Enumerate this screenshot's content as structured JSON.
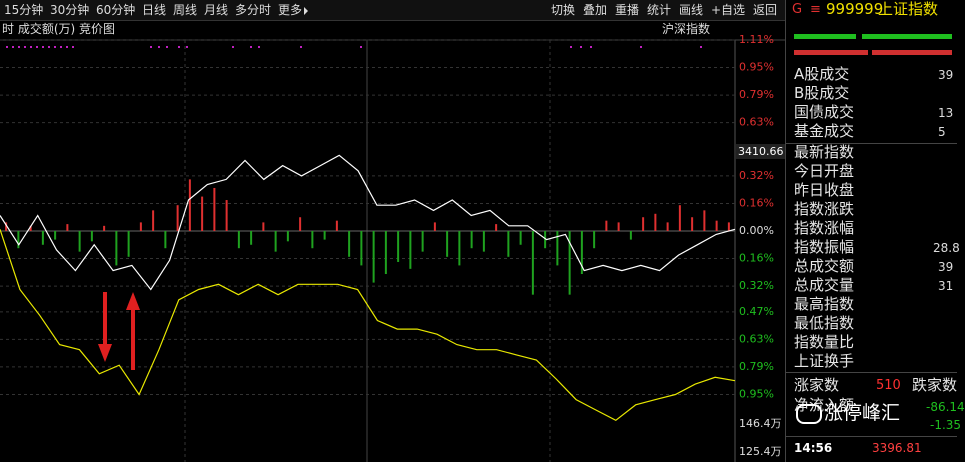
{
  "toolbar": {
    "periods": [
      "15分钟",
      "30分钟",
      "60分钟",
      "日线",
      "周线",
      "月线",
      "多分时",
      "更多"
    ],
    "actions": [
      "切换",
      "叠加",
      "重播",
      "统计",
      "画线",
      "+自选",
      "返回"
    ]
  },
  "chart_header": {
    "left": "时 成交额(万) 竞价图",
    "right": "沪深指数"
  },
  "chart_data": {
    "type": "line",
    "ylim": [
      -1.11,
      1.11
    ],
    "yticks": [
      {
        "value": 1.11,
        "label": "1.11%"
      },
      {
        "value": 0.95,
        "label": "0.95%"
      },
      {
        "value": 0.79,
        "label": "0.79%"
      },
      {
        "value": 0.63,
        "label": "0.63%"
      },
      {
        "value": 0.32,
        "label": "0.32%"
      },
      {
        "value": 0.16,
        "label": "0.16%"
      },
      {
        "value": 0,
        "label": "0.00%"
      },
      {
        "value": -0.16,
        "label": "0.16%"
      },
      {
        "value": -0.32,
        "label": "0.32%"
      },
      {
        "value": -0.47,
        "label": "0.47%"
      },
      {
        "value": -0.63,
        "label": "0.63%"
      },
      {
        "value": -0.79,
        "label": "0.79%"
      },
      {
        "value": -0.95,
        "label": "0.95%"
      }
    ],
    "price_label": "3410.66",
    "volume_labels": [
      "146.4万",
      "125.4万"
    ],
    "series": [
      {
        "name": "index",
        "color": "#ffffff",
        "values": [
          0.09,
          -0.08,
          0.09,
          -0.11,
          -0.23,
          -0.08,
          -0.23,
          -0.2,
          -0.34,
          -0.17,
          0.18,
          0.27,
          0.3,
          0.41,
          0.3,
          0.38,
          0.32,
          0.38,
          0.44,
          0.35,
          0.15,
          0.15,
          0.18,
          0.12,
          0.18,
          0.09,
          0.12,
          0.03,
          0.03,
          -0.05,
          -0.02,
          -0.23,
          -0.2,
          -0.23,
          -0.2,
          -0.23,
          -0.14,
          -0.08,
          -0.02,
          0.01
        ]
      },
      {
        "name": "compare",
        "color": "#e8e800",
        "values": [
          0.01,
          -0.34,
          -0.49,
          -0.66,
          -0.69,
          -0.83,
          -0.78,
          -0.95,
          -0.69,
          -0.4,
          -0.34,
          -0.31,
          -0.37,
          -0.31,
          -0.37,
          -0.31,
          -0.31,
          -0.31,
          -0.34,
          -0.52,
          -0.57,
          -0.57,
          -0.6,
          -0.66,
          -0.69,
          -0.69,
          -0.72,
          -0.75,
          -0.86,
          -0.98,
          -1.04,
          -1.1,
          -1.01,
          -0.98,
          -0.95,
          -0.89,
          -0.85,
          -0.87
        ]
      }
    ],
    "bars": {
      "up_color": "#e03030",
      "down_color": "#1fa21f",
      "values": [
        0.05,
        -0.1,
        0.03,
        -0.08,
        -0.05,
        0.04,
        -0.12,
        -0.06,
        0.03,
        -0.2,
        -0.15,
        0.05,
        0.12,
        -0.1,
        0.15,
        0.3,
        0.2,
        0.25,
        0.18,
        -0.1,
        -0.08,
        0.05,
        -0.12,
        -0.06,
        0.08,
        -0.1,
        -0.05,
        0.06,
        -0.15,
        -0.2,
        -0.3,
        -0.25,
        -0.18,
        -0.22,
        -0.12,
        0.05,
        -0.15,
        -0.2,
        -0.1,
        -0.12,
        0.04,
        -0.15,
        -0.08,
        -0.37,
        -0.1,
        -0.2,
        -0.37,
        -0.25,
        -0.1,
        0.06,
        0.05,
        -0.05,
        0.08,
        0.1,
        0.05,
        0.15,
        0.08,
        0.12,
        0.06,
        0.05
      ]
    }
  },
  "panel": {
    "g": "G",
    "menu": "≡",
    "code": "999999",
    "name": "上证指数",
    "rows": [
      {
        "label": "A股成交",
        "value": "39"
      },
      {
        "label": "B股成交"
      },
      {
        "label": "国债成交",
        "value": "13"
      },
      {
        "label": "基金成交",
        "value": "5"
      },
      {
        "label": "最新指数"
      },
      {
        "label": "今日开盘"
      },
      {
        "label": "昨日收盘"
      },
      {
        "label": "指数涨跌"
      },
      {
        "label": "指数涨幅"
      },
      {
        "label": "指数振幅",
        "value": "28.8"
      },
      {
        "label": "总成交额",
        "value": "39"
      },
      {
        "label": "总成交量",
        "value": "31"
      },
      {
        "label": "最高指数"
      },
      {
        "label": "最低指数"
      },
      {
        "label": "指数量比"
      },
      {
        "label": "上证换手"
      }
    ],
    "up_label": "涨家数",
    "up": 510,
    "down_label": "跌家数",
    "flow_label": "净流入额",
    "flow": "-86.14",
    "flow2": "-1.35",
    "time": "14:56",
    "price": 3396.81,
    "watermark": "涨停峰汇"
  }
}
